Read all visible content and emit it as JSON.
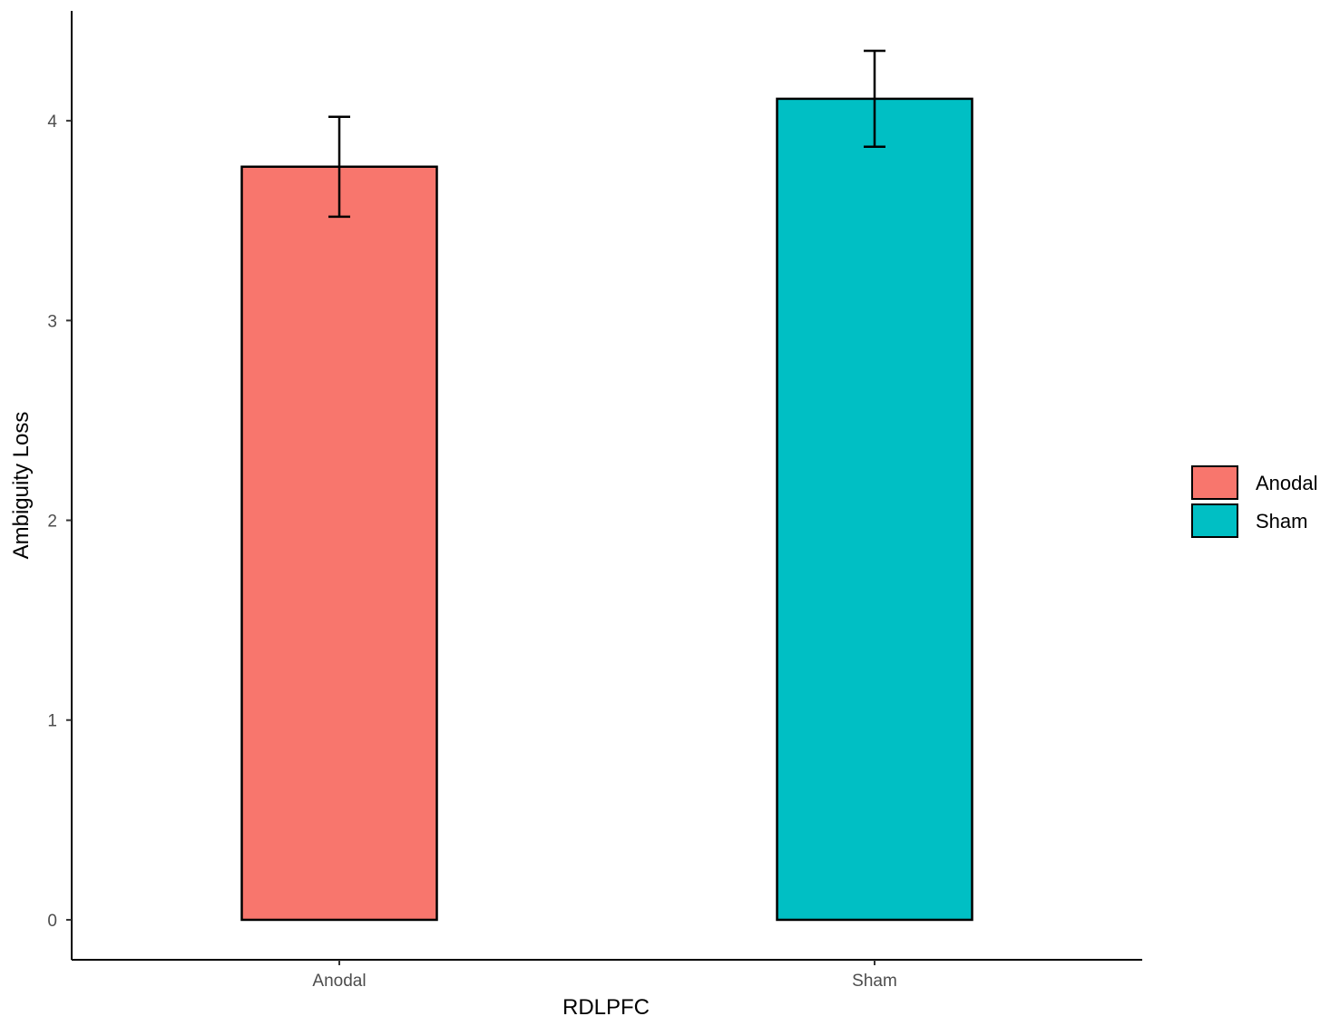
{
  "chart_data": {
    "type": "bar",
    "title": "",
    "xlabel": "RDLPFC",
    "ylabel": "Ambiguity Loss",
    "categories": [
      "Anodal",
      "Sham"
    ],
    "values": [
      3.77,
      4.11
    ],
    "error_low": [
      3.52,
      3.87
    ],
    "error_high": [
      4.02,
      4.35
    ],
    "colors": [
      "#F8766D",
      "#00BFC4"
    ],
    "ylim": [
      -0.2,
      4.55
    ],
    "yticks": [
      0,
      1,
      2,
      3,
      4
    ],
    "grid": false,
    "legend": {
      "placement": "right",
      "entries": [
        {
          "label": "Anodal",
          "color": "#F8766D"
        },
        {
          "label": "Sham",
          "color": "#00BFC4"
        }
      ]
    }
  }
}
